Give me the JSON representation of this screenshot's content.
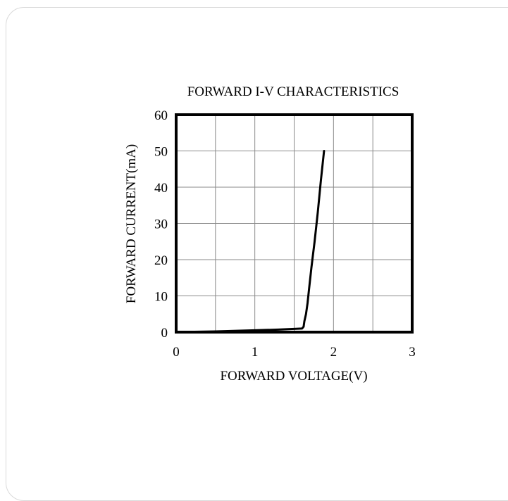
{
  "chart_data": {
    "type": "line",
    "title": "FORWARD I-V CHARACTERISTICS",
    "xlabel": "FORWARD VOLTAGE(V)",
    "ylabel": "FORWARD CURRENT(mA)",
    "xlim": [
      0,
      3
    ],
    "ylim": [
      0,
      60
    ],
    "xticks": [
      0,
      1,
      2,
      3
    ],
    "yticks": [
      0,
      10,
      20,
      30,
      40,
      50,
      60
    ],
    "grid": true,
    "legend": "none",
    "series": [
      {
        "color": "#000000",
        "x": [
          0.0,
          0.5,
          1.0,
          1.3,
          1.5,
          1.6,
          1.62,
          1.63,
          1.65,
          1.67,
          1.69,
          1.72,
          1.76,
          1.8,
          1.84,
          1.88
        ],
        "y": [
          0.0,
          0.2,
          0.5,
          0.7,
          0.9,
          1.0,
          1.5,
          3.0,
          5.0,
          8.0,
          12.0,
          18.0,
          25.0,
          33.0,
          42.0,
          50.0
        ]
      }
    ]
  }
}
